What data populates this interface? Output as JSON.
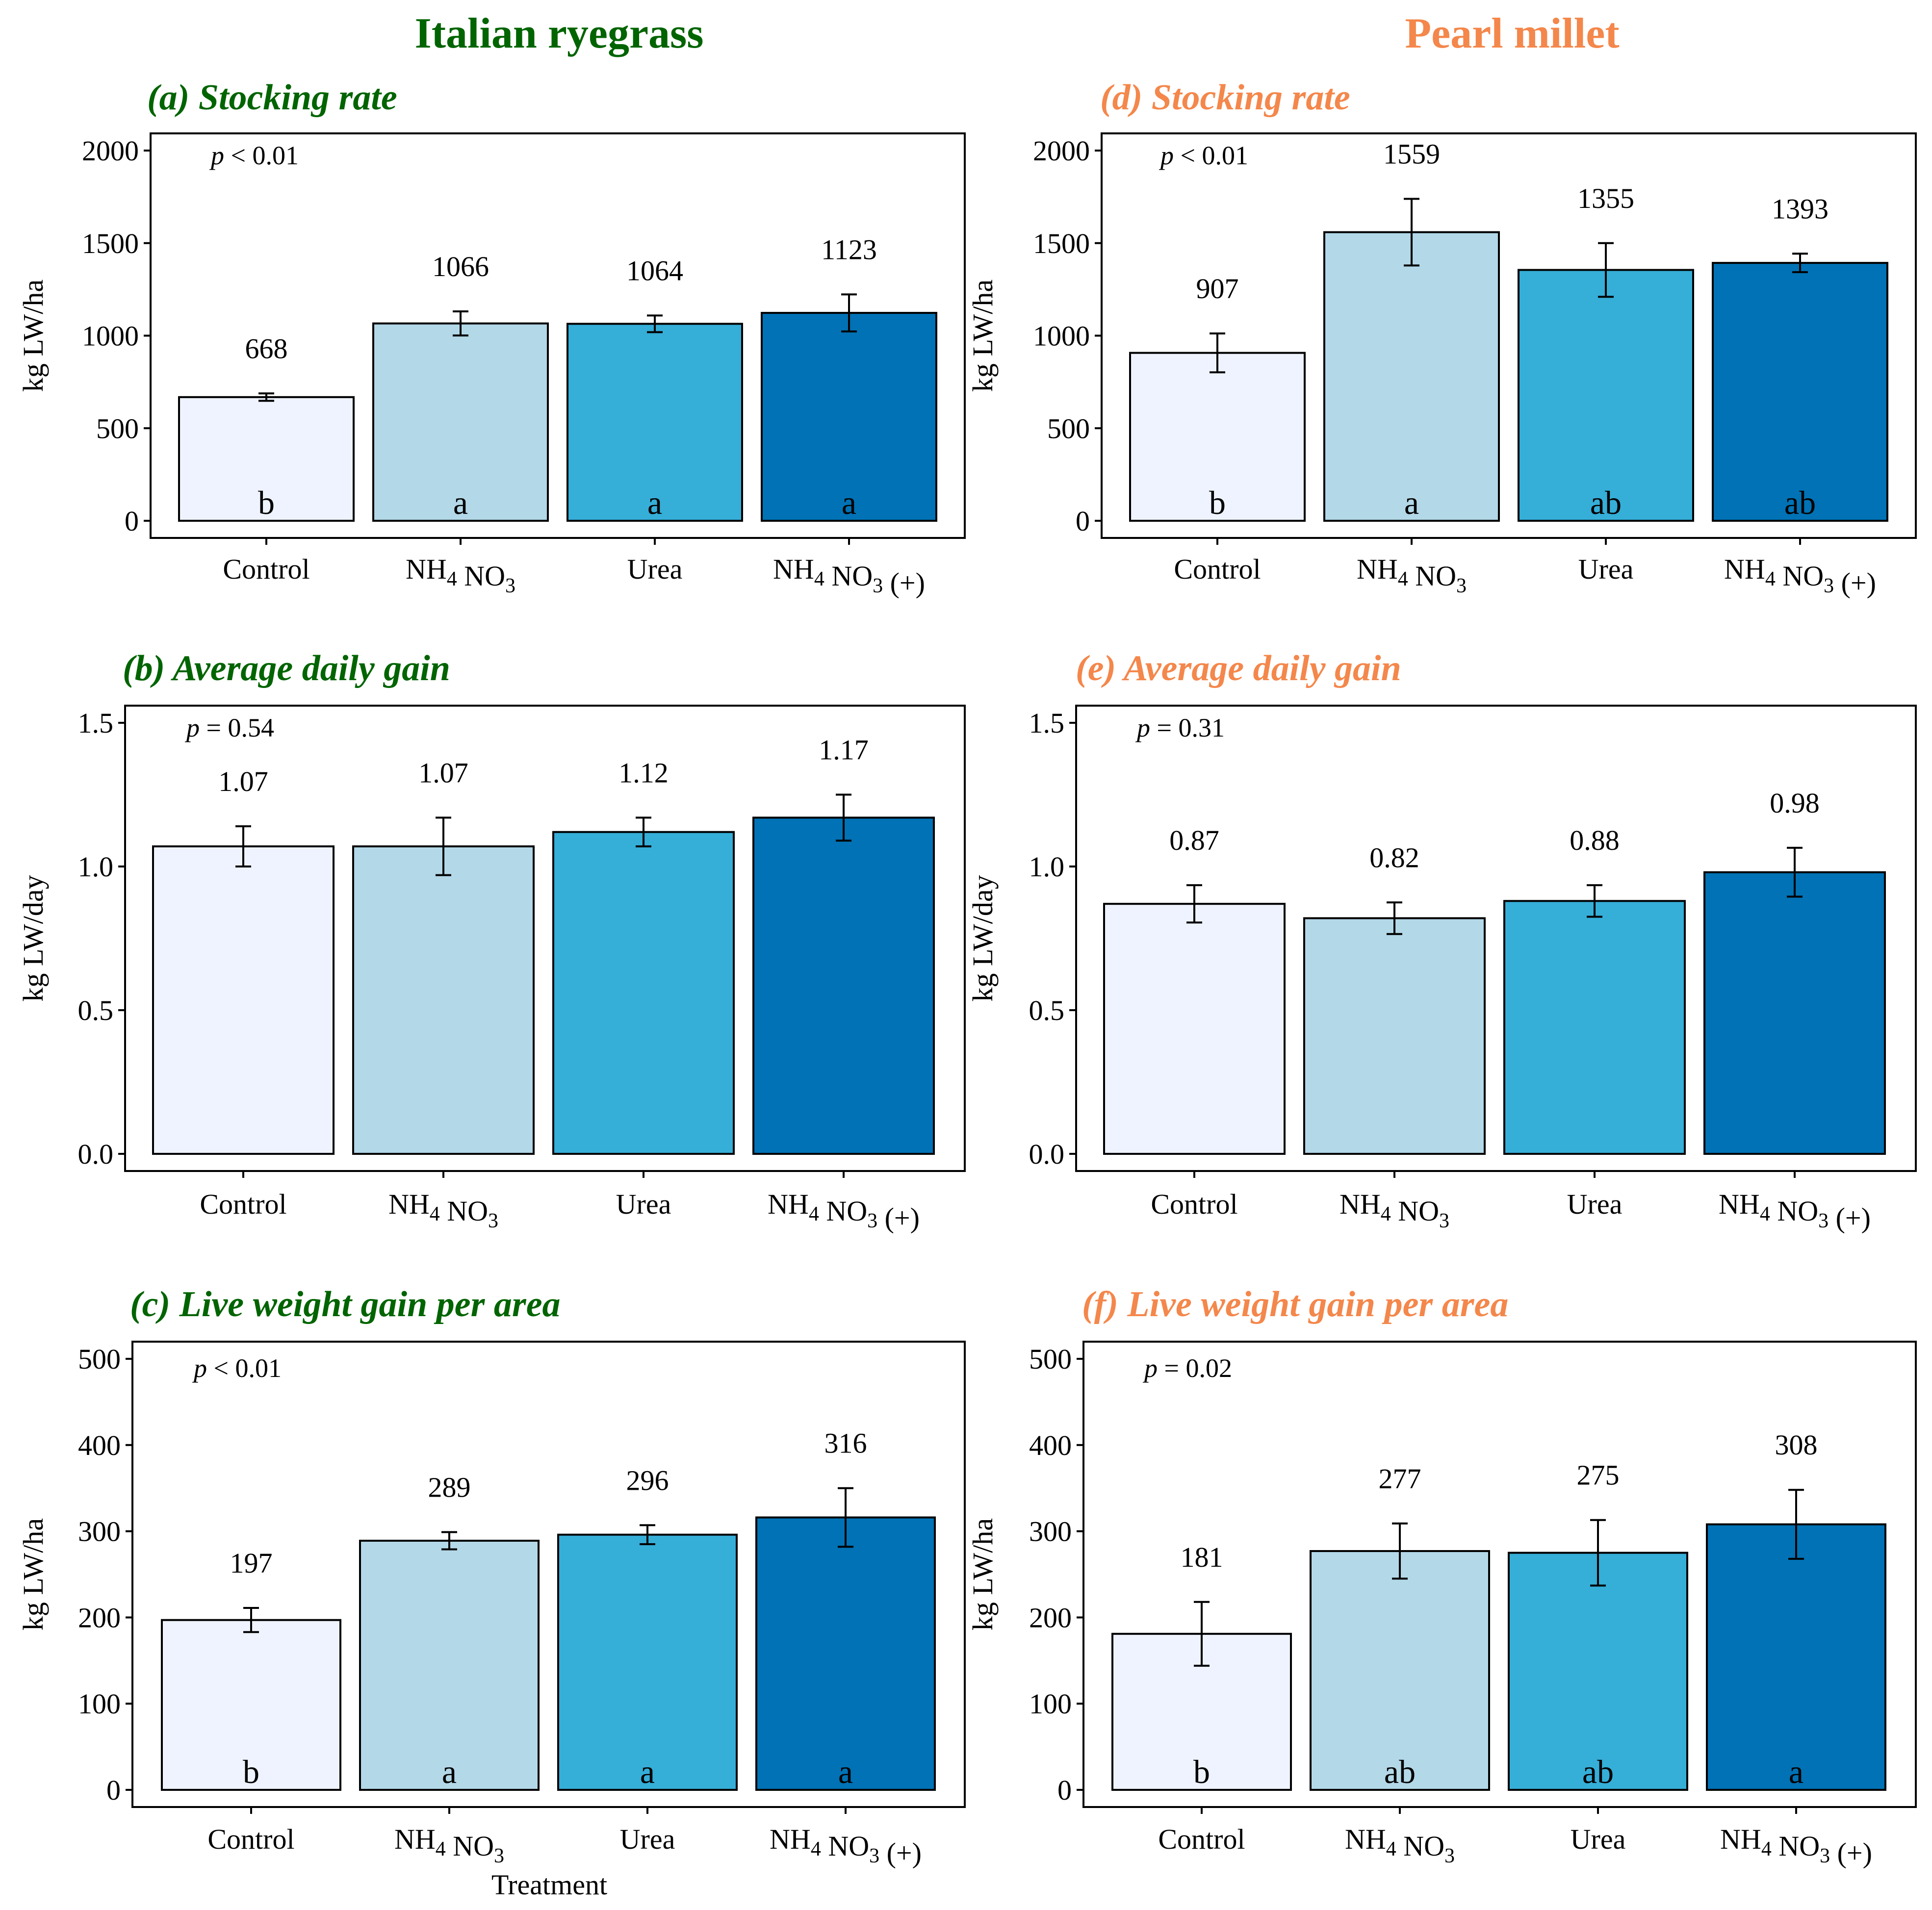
{
  "columns": [
    {
      "title": "Italian ryegrass",
      "color": "#006400"
    },
    {
      "title": "Pearl millet",
      "color": "#F4874B"
    }
  ],
  "xlabel": "Treatment",
  "bar_colors": [
    "#EEF3FF",
    "#B3D8E8",
    "#35AED8",
    "#0072B5"
  ],
  "chart_data": [
    {
      "id": "a",
      "type": "bar",
      "title": "(a) Stocking rate",
      "ylabel": "kg LW/ha",
      "p_text": "< 0.01",
      "ylim": [
        0,
        2000
      ],
      "yticks": [
        0,
        500,
        1000,
        1500,
        2000
      ],
      "categories": [
        "Control",
        "NH4 NO3",
        "Urea",
        "NH4 NO3 (+)"
      ],
      "values": [
        668,
        1066,
        1064,
        1123
      ],
      "value_labels": [
        "668",
        "1066",
        "1064",
        "1123"
      ],
      "errors": [
        20,
        65,
        45,
        100
      ],
      "letters": [
        "b",
        "a",
        "a",
        "a"
      ]
    },
    {
      "id": "b",
      "type": "bar",
      "title": "(b) Average daily gain",
      "ylabel": "kg LW/day",
      "p_text": "= 0.54",
      "ylim": [
        0,
        1.5
      ],
      "yticks": [
        0.0,
        0.5,
        1.0,
        1.5
      ],
      "categories": [
        "Control",
        "NH4 NO3",
        "Urea",
        "NH4 NO3 (+)"
      ],
      "values": [
        1.07,
        1.07,
        1.12,
        1.17
      ],
      "value_labels": [
        "1.07",
        "1.07",
        "1.12",
        "1.17"
      ],
      "errors": [
        0.07,
        0.1,
        0.05,
        0.08
      ],
      "letters": []
    },
    {
      "id": "c",
      "type": "bar",
      "title": "(c) Live weight gain per area",
      "ylabel": "kg LW/ha",
      "p_text": "< 0.01",
      "ylim": [
        0,
        500
      ],
      "yticks": [
        0,
        100,
        200,
        300,
        400,
        500
      ],
      "categories": [
        "Control",
        "NH4 NO3",
        "Urea",
        "NH4 NO3 (+)"
      ],
      "values": [
        197,
        289,
        296,
        316
      ],
      "value_labels": [
        "197",
        "289",
        "296",
        "316"
      ],
      "errors": [
        14,
        10,
        11,
        34
      ],
      "letters": [
        "b",
        "a",
        "a",
        "a"
      ]
    },
    {
      "id": "d",
      "type": "bar",
      "title": "(d) Stocking rate",
      "ylabel": "kg LW/ha",
      "p_text": "< 0.01",
      "ylim": [
        0,
        2000
      ],
      "yticks": [
        0,
        500,
        1000,
        1500,
        2000
      ],
      "categories": [
        "Control",
        "NH4 NO3",
        "Urea",
        "NH4 NO3 (+)"
      ],
      "values": [
        907,
        1559,
        1355,
        1393
      ],
      "value_labels": [
        "907",
        "1559",
        "1355",
        "1393"
      ],
      "errors": [
        105,
        180,
        145,
        50
      ],
      "letters": [
        "b",
        "a",
        "ab",
        "ab"
      ]
    },
    {
      "id": "e",
      "type": "bar",
      "title": "(e) Average daily gain",
      "ylabel": "kg LW/day",
      "p_text": "= 0.31",
      "ylim": [
        0,
        1.5
      ],
      "yticks": [
        0.0,
        0.5,
        1.0,
        1.5
      ],
      "categories": [
        "Control",
        "NH4 NO3",
        "Urea",
        "NH4 NO3 (+)"
      ],
      "values": [
        0.87,
        0.82,
        0.88,
        0.98
      ],
      "value_labels": [
        "0.87",
        "0.82",
        "0.88",
        "0.98"
      ],
      "errors": [
        0.065,
        0.055,
        0.055,
        0.085
      ],
      "letters": []
    },
    {
      "id": "f",
      "type": "bar",
      "title": "(f) Live weight gain per area",
      "ylabel": "kg LW/ha",
      "p_text": "= 0.02",
      "ylim": [
        0,
        500
      ],
      "yticks": [
        0,
        100,
        200,
        300,
        400,
        500
      ],
      "categories": [
        "Control",
        "NH4 NO3",
        "Urea",
        "NH4 NO3 (+)"
      ],
      "values": [
        181,
        277,
        275,
        308
      ],
      "value_labels": [
        "181",
        "277",
        "275",
        "308"
      ],
      "errors": [
        37,
        32,
        38,
        40
      ],
      "letters": [
        "b",
        "ab",
        "ab",
        "a"
      ]
    }
  ]
}
